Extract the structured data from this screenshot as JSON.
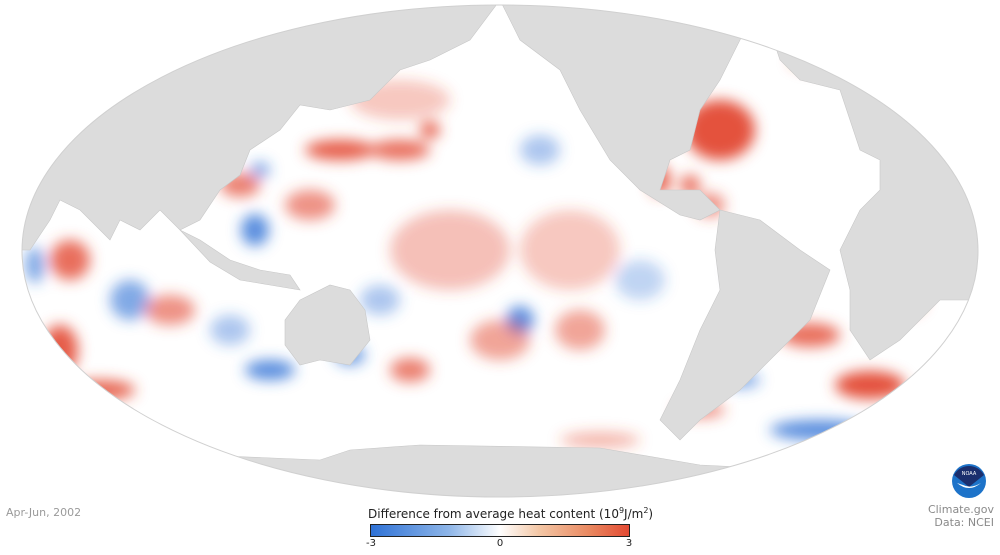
{
  "map": {
    "period": "Apr-Jun, 2002",
    "projection": "Mollweide, Pacific-centered",
    "colors": {
      "land": "#dcdcdc",
      "ocean_neutral": "#ffffff",
      "negative": "#2f72d6",
      "positive": "#e34a33"
    }
  },
  "legend": {
    "title": "Difference from average heat content",
    "unit_base": "(10",
    "unit_exp": "9",
    "unit_mid": "J/m",
    "unit_exp2": "2",
    "unit_end": ")",
    "min": "-3",
    "mid": "0",
    "max": "3"
  },
  "credit": {
    "site": "Climate.gov",
    "data": "Data: NCEI",
    "logo_text": "NOAA"
  }
}
